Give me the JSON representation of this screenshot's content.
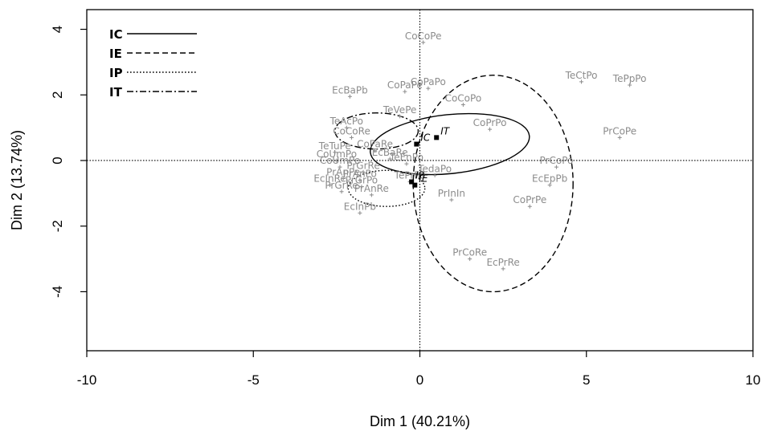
{
  "chart_data": {
    "type": "scatter",
    "xlabel": "Dim 1 (40.21%)",
    "ylabel": "Dim 2 (13.74%)",
    "xlim": [
      -10,
      10
    ],
    "ylim": [
      -5.8,
      4.6
    ],
    "xticks": [
      -10,
      -5,
      0,
      5,
      10
    ],
    "yticks": [
      -4,
      -2,
      0,
      2,
      4
    ],
    "reference_lines": {
      "x": 0,
      "y": 0
    },
    "legend": {
      "placement": "top-left",
      "entries": [
        {
          "label": "IC",
          "linestyle": "solid"
        },
        {
          "label": "IE",
          "linestyle": "dashed"
        },
        {
          "label": "IP",
          "linestyle": "dotted"
        },
        {
          "label": "IT",
          "linestyle": "dashdot"
        }
      ]
    },
    "points": [
      {
        "label": "CoCoPe",
        "x": 0.1,
        "y": 3.6
      },
      {
        "label": "CoPaPe",
        "x": -0.45,
        "y": 2.1
      },
      {
        "label": "CoPaPo",
        "x": 0.25,
        "y": 2.2
      },
      {
        "label": "EcBaPb",
        "x": -2.1,
        "y": 1.95
      },
      {
        "label": "CoCoPo",
        "x": 1.3,
        "y": 1.7
      },
      {
        "label": "TeVePe",
        "x": -0.6,
        "y": 1.35
      },
      {
        "label": "TeAcPo",
        "x": -2.2,
        "y": 1.0
      },
      {
        "label": "CoCoRe",
        "x": -2.05,
        "y": 0.7
      },
      {
        "label": "CoPrPo",
        "x": 2.1,
        "y": 0.95
      },
      {
        "label": "TeCtPo",
        "x": 4.85,
        "y": 2.4
      },
      {
        "label": "TePpPo",
        "x": 6.3,
        "y": 2.3
      },
      {
        "label": "PrCoPe",
        "x": 6.0,
        "y": 0.7
      },
      {
        "label": "TeTuPe",
        "x": -2.55,
        "y": 0.25
      },
      {
        "label": "CoPaRe",
        "x": -1.35,
        "y": 0.3
      },
      {
        "label": "CoUmPo",
        "x": -2.5,
        "y": 0.0
      },
      {
        "label": "EcBaRe",
        "x": -0.9,
        "y": 0.05
      },
      {
        "label": "CoUmPe",
        "x": -2.4,
        "y": -0.2
      },
      {
        "label": "PrGrRe",
        "x": -1.7,
        "y": -0.35
      },
      {
        "label": "TeEnPo",
        "x": -0.4,
        "y": -0.1
      },
      {
        "label": "TedaPo",
        "x": 0.45,
        "y": -0.45
      },
      {
        "label": "PrCoPo",
        "x": 4.1,
        "y": -0.2
      },
      {
        "label": "PrAnPe",
        "x": -2.3,
        "y": -0.55
      },
      {
        "label": "PrAnPo",
        "x": -1.8,
        "y": -0.6
      },
      {
        "label": "EcInRe",
        "x": -2.7,
        "y": -0.75
      },
      {
        "label": "PrGrPo",
        "x": -1.75,
        "y": -0.8
      },
      {
        "label": "TePrPo",
        "x": -0.3,
        "y": -0.65
      },
      {
        "label": "EcEpPb",
        "x": 3.9,
        "y": -0.75
      },
      {
        "label": "PrGrRe",
        "x": -2.35,
        "y": -0.95
      },
      {
        "label": "PrAnRe",
        "x": -1.45,
        "y": -1.05
      },
      {
        "label": "PrInIn",
        "x": 0.95,
        "y": -1.2
      },
      {
        "label": "CoPrPe",
        "x": 3.3,
        "y": -1.4
      },
      {
        "label": "EcInPb",
        "x": -1.8,
        "y": -1.6
      },
      {
        "label": "PrCoRe",
        "x": 1.5,
        "y": -3.0
      },
      {
        "label": "EcPrRe",
        "x": 2.5,
        "y": -3.3
      }
    ],
    "centroids": [
      {
        "label": "IC",
        "x": -0.1,
        "y": 0.5
      },
      {
        "label": "IT",
        "x": 0.5,
        "y": 0.7
      },
      {
        "label": "IP",
        "x": -0.25,
        "y": -0.65
      },
      {
        "label": "IE",
        "x": -0.15,
        "y": -0.75
      }
    ],
    "ellipses": [
      {
        "group": "IC",
        "linestyle": "solid",
        "cx": 0.9,
        "cy": 0.5,
        "rx": 2.4,
        "ry": 0.9,
        "angle_deg": -6
      },
      {
        "group": "IE",
        "linestyle": "dashed",
        "cx": 2.2,
        "cy": -0.7,
        "rx": 2.4,
        "ry": 3.3,
        "angle_deg": 0
      },
      {
        "group": "IP",
        "linestyle": "dotted",
        "cx": -1.0,
        "cy": -0.85,
        "rx": 1.15,
        "ry": 0.55,
        "angle_deg": 0
      },
      {
        "group": "IT",
        "linestyle": "dashdot",
        "cx": -1.3,
        "cy": 0.9,
        "rx": 1.25,
        "ry": 0.55,
        "angle_deg": 0
      }
    ]
  }
}
